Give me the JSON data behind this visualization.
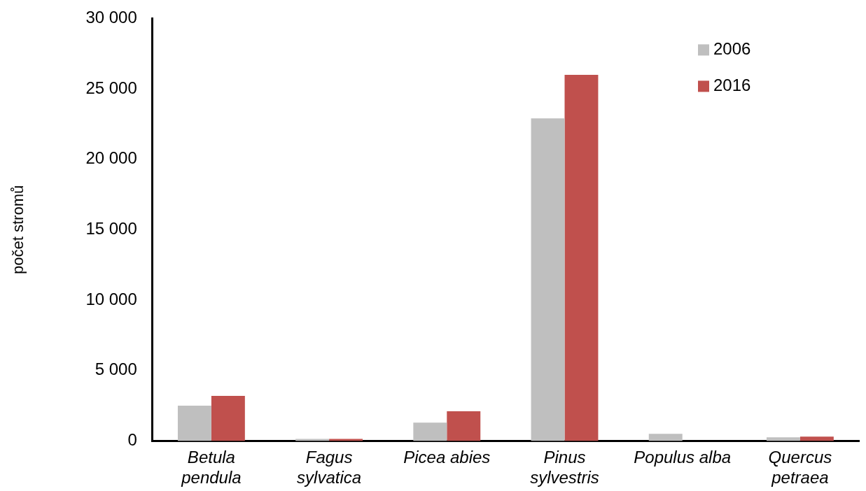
{
  "chart_data": {
    "type": "bar",
    "ylabel": "počet stromů",
    "categories": [
      "Betula pendula",
      "Fagus sylvatica",
      "Picea abies",
      "Pinus sylvestris",
      "Populus alba",
      "Quercus petraea"
    ],
    "series": [
      {
        "name": "2006",
        "color": "#bfbfbf",
        "values": [
          2500,
          150,
          1300,
          22900,
          500,
          250
        ]
      },
      {
        "name": "2016",
        "color": "#c0504d",
        "values": [
          3200,
          150,
          2100,
          26000,
          0,
          300
        ]
      }
    ],
    "ylim": [
      0,
      30000
    ],
    "yticks": [
      {
        "value": 0,
        "label": "0"
      },
      {
        "value": 5000,
        "label": "5 000"
      },
      {
        "value": 10000,
        "label": "10 000"
      },
      {
        "value": 15000,
        "label": "15 000"
      },
      {
        "value": 20000,
        "label": "20 000"
      },
      {
        "value": 25000,
        "label": "25 000"
      },
      {
        "value": 30000,
        "label": "30 000"
      }
    ],
    "grid": false,
    "legend": "top right"
  }
}
